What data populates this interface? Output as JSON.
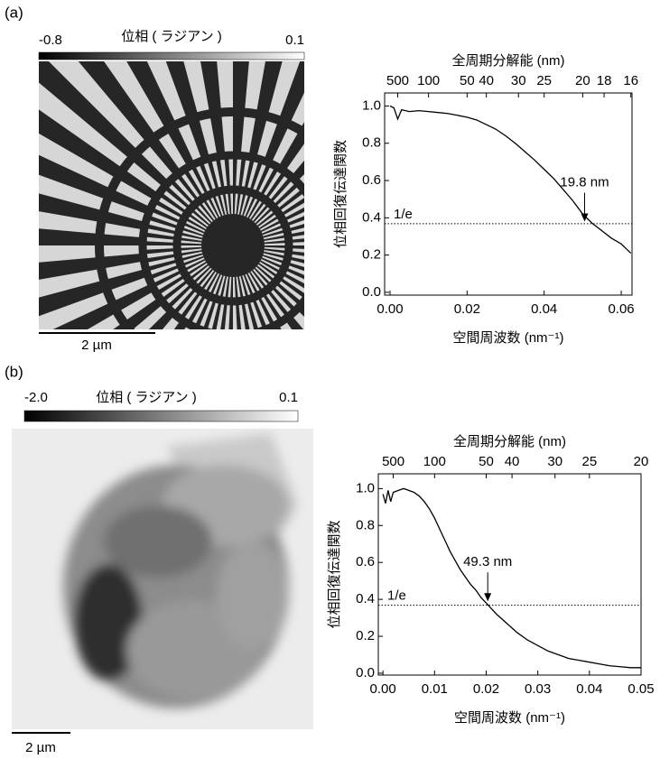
{
  "panels": [
    {
      "label": "(a)",
      "colorbar": {
        "title": "位相 ( ラジアン )",
        "ticks": [
          -0.8,
          0.1
        ]
      },
      "scale_bar": "2 µm"
    },
    {
      "label": "(b)",
      "colorbar": {
        "title": "位相 ( ラジアン )",
        "ticks": [
          {
            "value": -2.0,
            "label": "-2.0"
          },
          0.1
        ]
      },
      "scale_bar": "2 µm"
    }
  ],
  "chart_data": [
    {
      "type": "line",
      "x": [
        0.0,
        0.001,
        0.002,
        0.003,
        0.005,
        0.0075,
        0.01,
        0.0125,
        0.015,
        0.0175,
        0.02,
        0.0225,
        0.025,
        0.0275,
        0.03,
        0.0325,
        0.035,
        0.0375,
        0.04,
        0.0425,
        0.045,
        0.0475,
        0.05,
        0.0525,
        0.055,
        0.0575,
        0.06,
        0.0625
      ],
      "values": [
        1.0,
        0.99,
        0.93,
        0.98,
        0.97,
        0.975,
        0.97,
        0.965,
        0.96,
        0.95,
        0.94,
        0.925,
        0.9,
        0.875,
        0.84,
        0.8,
        0.755,
        0.71,
        0.66,
        0.61,
        0.55,
        0.49,
        0.42,
        0.37,
        0.33,
        0.29,
        0.26,
        0.21
      ],
      "color": "#000000",
      "xlabel": "空間周波数 (nm⁻¹)",
      "ylabel": "位相回復伝達関数",
      "x2label": "全周期分解能 (nm)",
      "xlim": [
        -0.0014,
        0.0628
      ],
      "ylim": [
        -0.015,
        1.07
      ],
      "xticks": [
        {
          "value": 0,
          "label": "0.00"
        },
        0.02,
        0.04,
        0.06
      ],
      "yticks": [
        {
          "value": 0,
          "label": "0.0"
        },
        0.2,
        0.4,
        0.6,
        0.8,
        {
          "value": 1,
          "label": "1.0"
        }
      ],
      "x2ticks": [
        500,
        100,
        50,
        40,
        30,
        25,
        20,
        18,
        16
      ],
      "x2_scale": "reciprocal",
      "reference_line": {
        "value": 0.368,
        "label": "1/e"
      },
      "annotations": [
        {
          "text": "19.8 nm",
          "x": 0.0505,
          "y": 0.37
        }
      ]
    },
    {
      "type": "line",
      "x": [
        0.0,
        0.0005,
        0.001,
        0.0015,
        0.002,
        0.003,
        0.004,
        0.005,
        0.006,
        0.007,
        0.008,
        0.009,
        0.01,
        0.011,
        0.012,
        0.013,
        0.014,
        0.015,
        0.016,
        0.017,
        0.018,
        0.019,
        0.02,
        0.021,
        0.022,
        0.024,
        0.026,
        0.028,
        0.03,
        0.032,
        0.034,
        0.036,
        0.038,
        0.04,
        0.042,
        0.044,
        0.046,
        0.048,
        0.05
      ],
      "values": [
        0.97,
        0.92,
        0.99,
        0.93,
        0.98,
        0.99,
        1.0,
        0.99,
        0.98,
        0.96,
        0.93,
        0.89,
        0.84,
        0.78,
        0.72,
        0.66,
        0.61,
        0.56,
        0.52,
        0.48,
        0.45,
        0.41,
        0.38,
        0.35,
        0.32,
        0.27,
        0.22,
        0.18,
        0.15,
        0.12,
        0.1,
        0.08,
        0.07,
        0.06,
        0.05,
        0.04,
        0.035,
        0.03,
        0.03
      ],
      "color": "#000000",
      "xlabel": "空間周波数 (nm⁻¹)",
      "ylabel": "位相回復伝達関数",
      "x2label": "全周期分解能 (nm)",
      "xlim": [
        -0.0009,
        0.05
      ],
      "ylim": [
        -0.01,
        1.08
      ],
      "xticks": [
        {
          "value": 0,
          "label": "0.00"
        },
        0.01,
        0.02,
        0.03,
        0.04,
        0.05
      ],
      "yticks": [
        {
          "value": 0,
          "label": "0.0"
        },
        0.2,
        0.4,
        0.6,
        0.8,
        {
          "value": 1,
          "label": "1.0"
        }
      ],
      "x2ticks": [
        500,
        100,
        50,
        40,
        30,
        25,
        20
      ],
      "x2_scale": "reciprocal",
      "reference_line": {
        "value": 0.368,
        "label": "1/e"
      },
      "annotations": [
        {
          "text": "49.3 nm",
          "x": 0.0203,
          "y": 0.38
        }
      ]
    }
  ]
}
